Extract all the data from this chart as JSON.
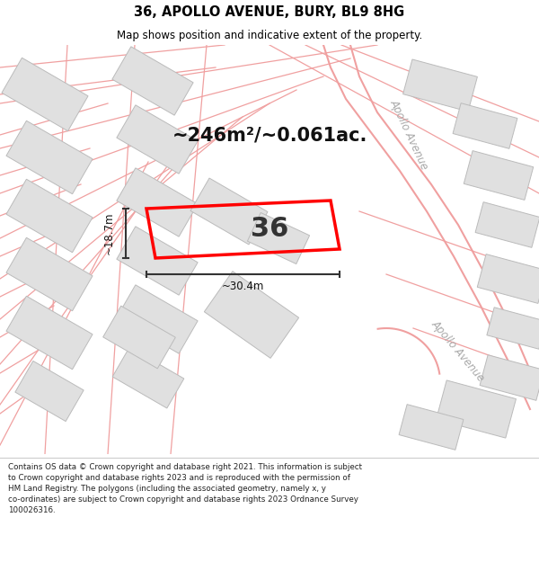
{
  "title_line1": "36, APOLLO AVENUE, BURY, BL9 8HG",
  "title_line2": "Map shows position and indicative extent of the property.",
  "area_text": "~246m²/~0.061ac.",
  "plot_number": "36",
  "dim_width": "~30.4m",
  "dim_height": "~18.7m",
  "street_label_top": "Apollo Avenue",
  "street_label_bottom": "Apollo Avenue",
  "footer_text": "Contains OS data © Crown copyright and database right 2021. This information is subject\nto Crown copyright and database rights 2023 and is reproduced with the permission of\nHM Land Registry. The polygons (including the associated geometry, namely x, y\nco-ordinates) are subject to Crown copyright and database rights 2023 Ordnance Survey\n100026316.",
  "bg_color": "#ffffff",
  "map_bg": "#ffffff",
  "plot_fill": "none",
  "plot_edge": "#ff0000",
  "street_line_color": "#f0a0a0",
  "road_curve_color": "#e08080",
  "building_fill": "#e0e0e0",
  "building_edge": "#bbbbbb",
  "title_bg": "#ffffff",
  "footer_bg": "#ffffff",
  "apollo_ave_color": "#aaaaaa"
}
